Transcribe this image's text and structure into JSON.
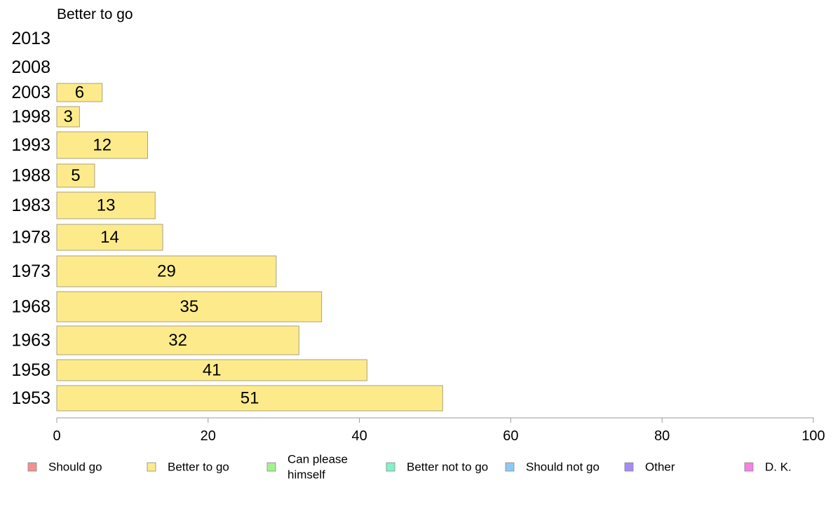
{
  "chart_data": {
    "type": "bar",
    "orientation": "horizontal",
    "title": "Better to go",
    "categories": [
      "2013",
      "2008",
      "2003",
      "1998",
      "1993",
      "1988",
      "1983",
      "1978",
      "1973",
      "1968",
      "1963",
      "1958",
      "1953"
    ],
    "series": [
      {
        "name": "Better to go",
        "values": [
          null,
          null,
          6,
          3,
          12,
          5,
          13,
          14,
          29,
          35,
          32,
          41,
          51
        ],
        "color": "#fdeb8b"
      }
    ],
    "xlim": [
      0,
      100
    ],
    "xticks": [
      0,
      20,
      40,
      60,
      80,
      100
    ],
    "grid": false,
    "legend_position": "bottom",
    "legend": [
      {
        "label": "Should go",
        "color": "#f79090"
      },
      {
        "label": "Better to go",
        "color": "#fdeb8b"
      },
      {
        "label": "Can please himself",
        "lines": [
          "Can please",
          "himself"
        ],
        "color": "#a3f28e"
      },
      {
        "label": "Better not to go",
        "color": "#86f0c8"
      },
      {
        "label": "Should not go",
        "color": "#8ccaf5"
      },
      {
        "label": "Other",
        "color": "#a48cf2"
      },
      {
        "label": "D. K.",
        "color": "#f283e3"
      }
    ]
  }
}
